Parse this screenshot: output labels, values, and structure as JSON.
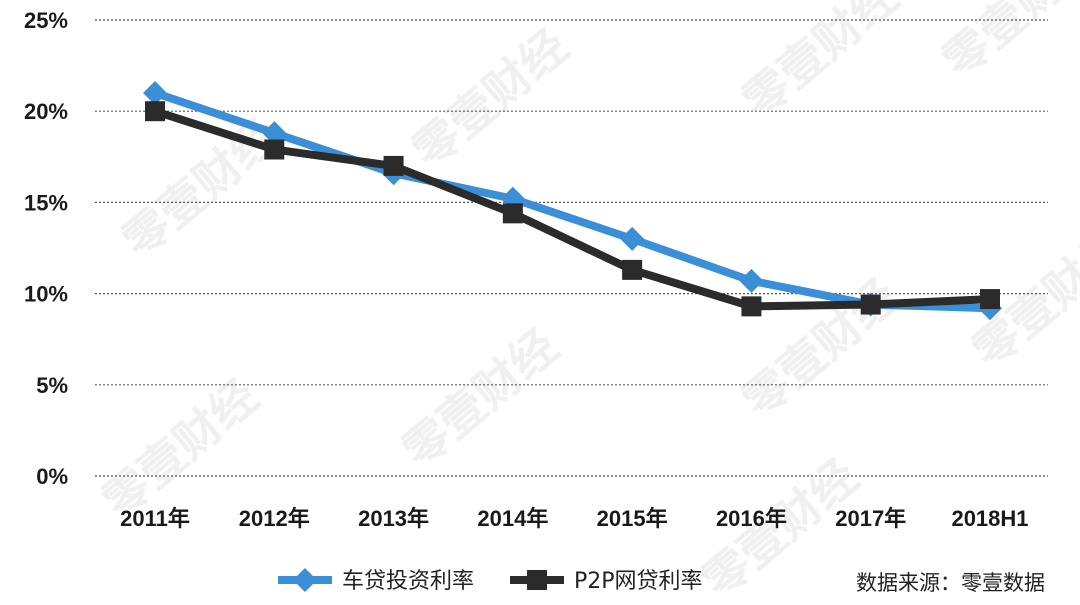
{
  "chart_data": {
    "type": "line",
    "categories": [
      "2011年",
      "2012年",
      "2013年",
      "2014年",
      "2015年",
      "2016年",
      "2017年",
      "2018H1"
    ],
    "series": [
      {
        "name": "车贷投资利率",
        "color": "#3a8fd6",
        "marker": "diamond",
        "values": [
          21.0,
          18.8,
          16.6,
          15.2,
          13.0,
          10.7,
          9.4,
          9.2
        ]
      },
      {
        "name": "P2P网贷利率",
        "color": "#2b2b2b",
        "marker": "square",
        "values": [
          20.0,
          17.9,
          17.0,
          14.4,
          11.3,
          9.3,
          9.4,
          9.7
        ]
      }
    ],
    "y_ticks": [
      "0%",
      "5%",
      "10%",
      "15%",
      "20%",
      "25%"
    ],
    "ylim": [
      0,
      25
    ],
    "grid": "horizontal dotted",
    "legend_position": "bottom-left",
    "title": "",
    "xlabel": "",
    "ylabel": ""
  },
  "source_note": "数据来源：零壹数据",
  "watermark_text": "零壹财经"
}
